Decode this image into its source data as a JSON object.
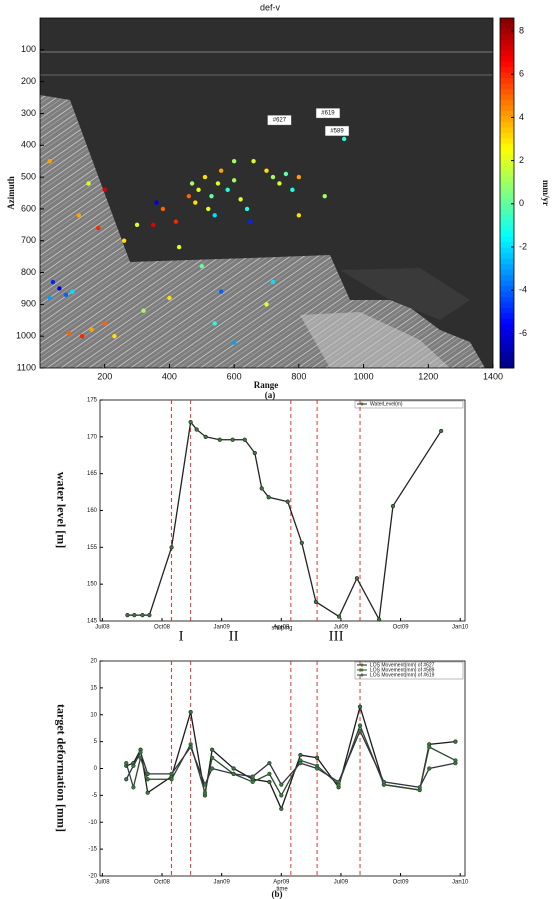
{
  "chart_data": [
    {
      "type": "scatter",
      "title": "def-v",
      "xlabel": "Range",
      "ylabel": "Azimuth",
      "colorbar_label": "mm/yr",
      "caption": "(a)",
      "x": [
        470,
        490,
        510,
        530,
        550,
        560,
        580,
        600,
        520,
        540,
        480,
        460,
        620,
        640,
        700,
        720,
        740,
        760,
        780,
        800,
        660,
        600,
        40,
        60,
        80,
        30,
        100,
        90,
        130,
        160,
        200,
        230,
        120,
        180,
        260,
        300,
        350,
        380,
        420,
        430,
        500,
        560,
        600,
        540,
        720,
        800,
        880,
        940,
        700,
        320,
        400,
        30,
        150,
        200,
        360,
        650
      ],
      "y": [
        520,
        540,
        500,
        560,
        520,
        480,
        540,
        510,
        600,
        620,
        580,
        560,
        570,
        600,
        480,
        500,
        520,
        490,
        540,
        500,
        450,
        450,
        830,
        850,
        870,
        880,
        860,
        990,
        1000,
        980,
        960,
        1000,
        620,
        660,
        700,
        650,
        650,
        600,
        640,
        720,
        780,
        860,
        1020,
        960,
        830,
        620,
        560,
        380,
        900,
        920,
        880,
        450,
        520,
        540,
        580,
        640
      ],
      "values": [
        1,
        2,
        3,
        0,
        2,
        4,
        -1,
        1,
        2,
        -2,
        3,
        5,
        2,
        -1,
        3,
        1,
        2,
        0,
        -1,
        4,
        2,
        1,
        -5,
        -6,
        -4,
        -3,
        -2,
        5,
        6,
        4,
        5,
        3,
        4,
        6,
        3,
        2,
        7,
        5,
        6,
        2,
        0,
        -4,
        -3,
        -1,
        -2,
        3,
        1,
        -1,
        2,
        1,
        3,
        4,
        2,
        7,
        -6,
        -5
      ],
      "xlim": [
        0,
        1400
      ],
      "ylim": [
        0,
        1100
      ],
      "y_reversed": true,
      "xticks": [
        200,
        400,
        600,
        800,
        1000,
        1200,
        1400
      ],
      "yticks": [
        100,
        200,
        300,
        400,
        500,
        600,
        700,
        800,
        900,
        1000,
        1100
      ],
      "clim": [
        -7.6,
        8.6
      ],
      "cticks": [
        8,
        6,
        4,
        2,
        0,
        -2,
        -4,
        -6
      ],
      "colormap": "jet",
      "annotations": [
        {
          "text": "#627",
          "x": 740,
          "y": 321
        },
        {
          "text": "#619",
          "x": 890,
          "y": 299
        },
        {
          "text": "#589",
          "x": 918,
          "y": 355
        }
      ]
    },
    {
      "type": "line",
      "ylabel": "water  level [m]",
      "xlabel": "shuping",
      "caption": "(b)",
      "x": [
        2008.605,
        2008.634,
        2008.668,
        2008.697,
        2008.79,
        2008.87,
        2008.895,
        2008.933,
        2008.992,
        2009.046,
        2009.097,
        2009.139,
        2009.168,
        2009.197,
        2009.277,
        2009.336,
        2009.395,
        2009.492,
        2009.567,
        2009.66,
        2009.718,
        2009.92
      ],
      "series": [
        {
          "name": "WaterLevel(m)",
          "color": "#222222",
          "values": [
            145.8,
            145.8,
            145.8,
            145.8,
            155,
            172,
            171,
            170,
            169.6,
            169.6,
            169.6,
            167.8,
            163,
            161.8,
            161.2,
            155.6,
            147.6,
            145.6,
            150.8,
            145.2,
            160.6,
            170.8
          ]
        }
      ],
      "xlim": [
        2008.49,
        2010.02
      ],
      "ylim": [
        145,
        175
      ],
      "yticks": [
        145,
        150,
        155,
        160,
        165,
        170,
        175
      ],
      "xticks": [
        {
          "value": 2008.5,
          "label": "Jul08"
        },
        {
          "value": 2008.75,
          "label": "Oct08"
        },
        {
          "value": 2009.0,
          "label": "Jan09"
        },
        {
          "value": 2009.25,
          "label": "Apr09"
        },
        {
          "value": 2009.5,
          "label": "Jul09"
        },
        {
          "value": 2009.75,
          "label": "Oct09"
        },
        {
          "value": 2010.0,
          "label": "Jan10"
        }
      ],
      "vlines": [
        2008.79,
        2008.87,
        2009.29,
        2009.4,
        2009.58
      ],
      "vline_color": "#e02020",
      "annotations": [
        {
          "text": "I",
          "x": 2008.83
        },
        {
          "text": "II",
          "x": 2009.05
        },
        {
          "text": "III",
          "x": 2009.48
        }
      ]
    },
    {
      "type": "line",
      "ylabel": "target deformation [mm]",
      "xlabel": "time",
      "x": [
        2008.6,
        2008.63,
        2008.66,
        2008.69,
        2008.79,
        2008.87,
        2008.93,
        2008.96,
        2009.05,
        2009.13,
        2009.2,
        2009.25,
        2009.33,
        2009.4,
        2009.49,
        2009.58,
        2009.68,
        2009.83,
        2009.87,
        2009.98
      ],
      "series": [
        {
          "name": "LOS Movement(mm) of #627",
          "color": "#1a1a1a",
          "values": [
            0.5,
            1,
            3.5,
            -4.5,
            -1.5,
            10.5,
            -5,
            3.5,
            0,
            -2,
            -2.5,
            -7.5,
            2.5,
            2,
            -3.5,
            11.5,
            -3,
            -4,
            4.5,
            5
          ]
        },
        {
          "name": "LOS Movement(mm) of #589",
          "color": "#2a4a2a",
          "values": [
            1,
            -3.5,
            2,
            -2,
            -2,
            4.5,
            -4.5,
            2,
            -1,
            -2.5,
            -1,
            -5,
            1.5,
            0.5,
            -3,
            8,
            -3,
            -4,
            4,
            1.5
          ]
        },
        {
          "name": "LOS Movement(mm) of #619",
          "color": "#333344",
          "values": [
            -2,
            0.5,
            3,
            -1,
            -1,
            4,
            -3,
            0,
            -1,
            -1.5,
            1,
            -3,
            1,
            0,
            -2.5,
            7,
            -2.5,
            -3.5,
            0,
            1
          ]
        }
      ],
      "xlim": [
        2008.49,
        2010.02
      ],
      "ylim": [
        -20,
        20
      ],
      "yticks": [
        -20,
        -15,
        -10,
        -5,
        0,
        5,
        10,
        15,
        20
      ],
      "xticks": [
        {
          "value": 2008.5,
          "label": "Jul08"
        },
        {
          "value": 2008.75,
          "label": "Oct08"
        },
        {
          "value": 2009.0,
          "label": "Jan09"
        },
        {
          "value": 2009.25,
          "label": "Apr09"
        },
        {
          "value": 2009.5,
          "label": "Jul09"
        },
        {
          "value": 2009.75,
          "label": "Oct09"
        },
        {
          "value": 2010.0,
          "label": "Jan10"
        }
      ],
      "vlines": [
        2008.79,
        2008.87,
        2009.29,
        2009.4,
        2009.58
      ],
      "vline_color": "#e02020"
    }
  ]
}
